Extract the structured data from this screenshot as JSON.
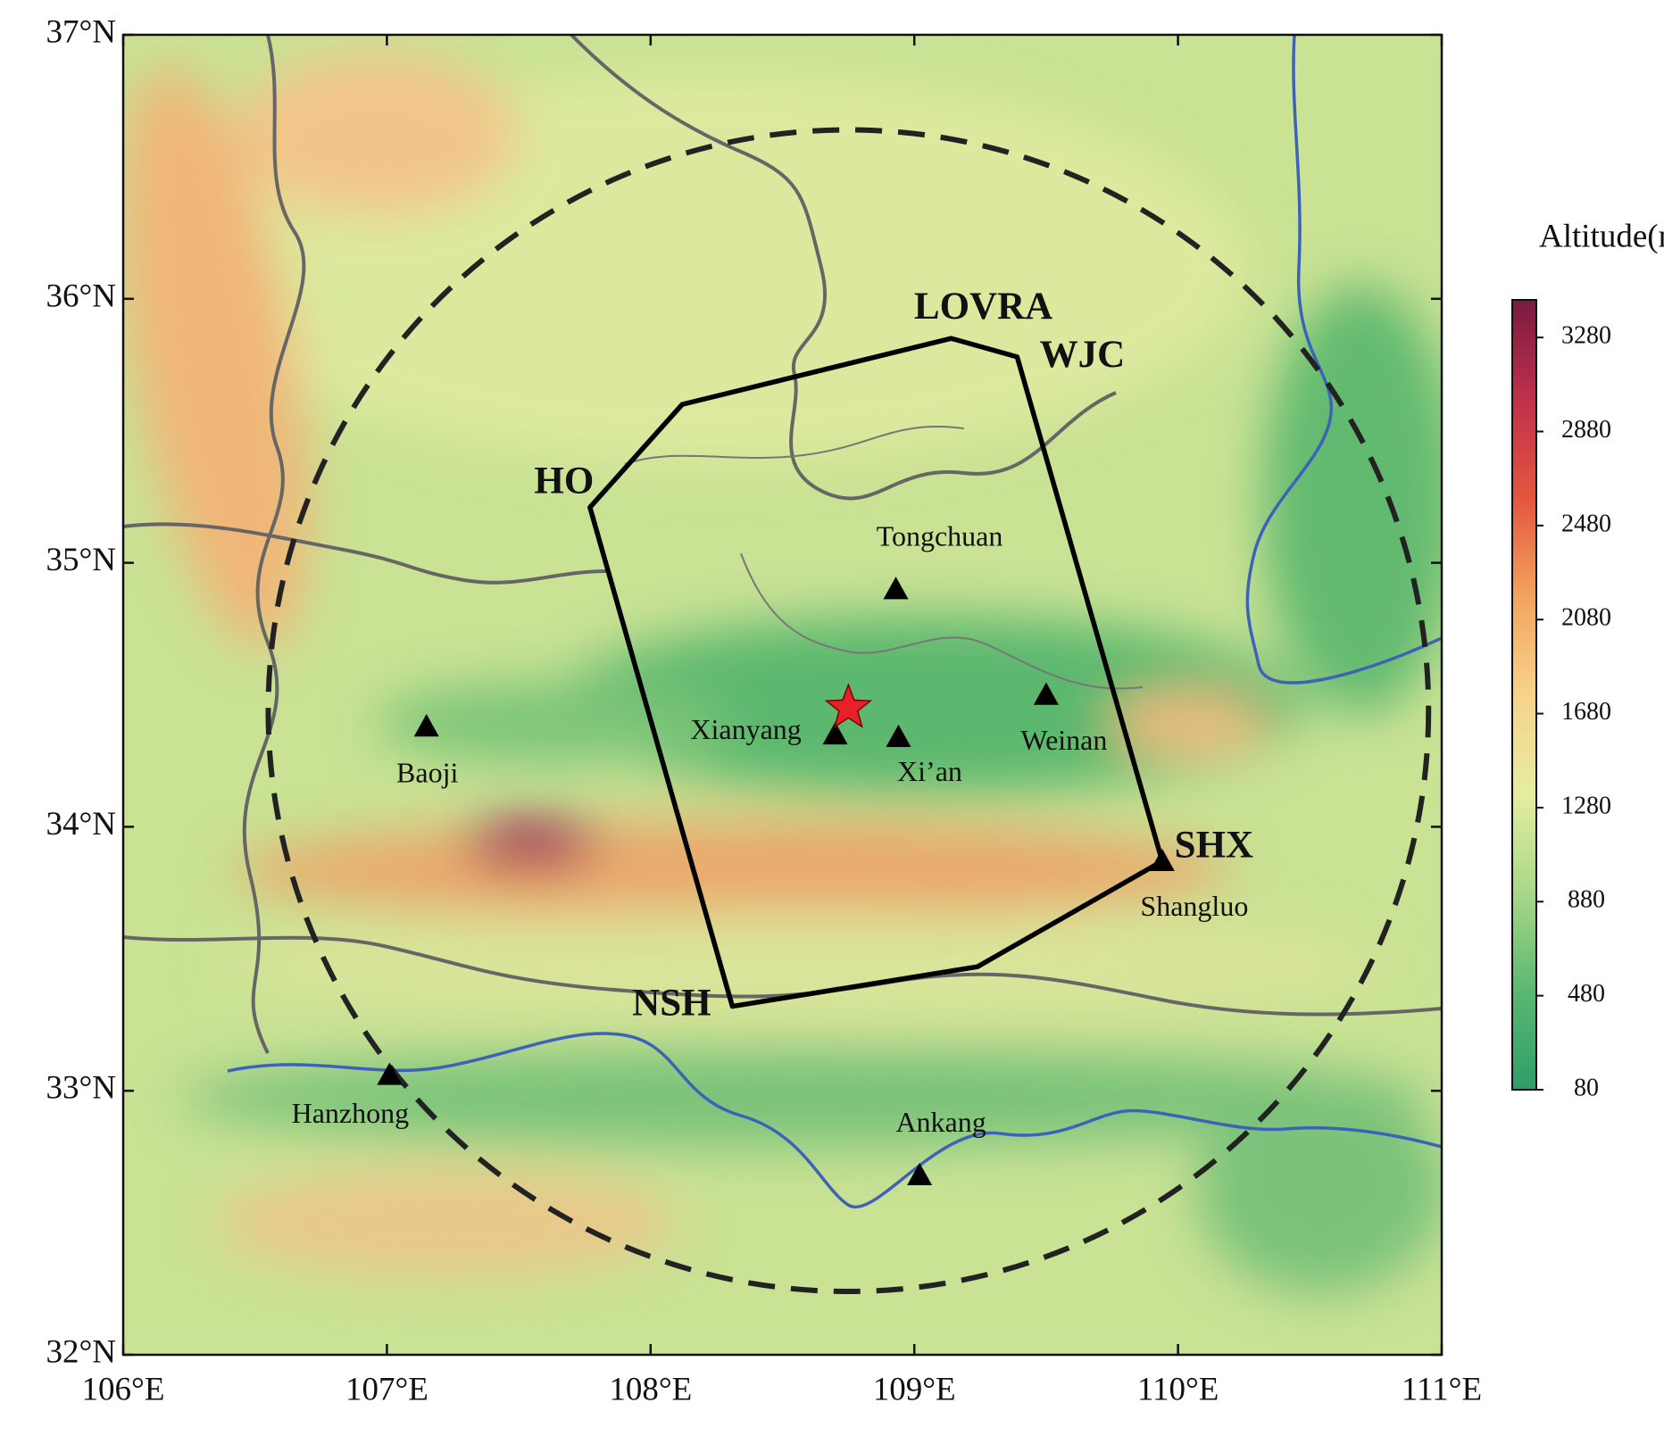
{
  "map": {
    "type": "map",
    "xlim": [
      106,
      111
    ],
    "ylim": [
      32,
      37
    ],
    "xticks": [
      {
        "value": 106,
        "label": "106°E"
      },
      {
        "value": 107,
        "label": "107°E"
      },
      {
        "value": 108,
        "label": "108°E"
      },
      {
        "value": 109,
        "label": "109°E"
      },
      {
        "value": 110,
        "label": "110°E"
      },
      {
        "value": 111,
        "label": "111°E"
      }
    ],
    "yticks": [
      {
        "value": 32,
        "label": "32°N"
      },
      {
        "value": 33,
        "label": "33°N"
      },
      {
        "value": 34,
        "label": "34°N"
      },
      {
        "value": 35,
        "label": "35°N"
      },
      {
        "value": 36,
        "label": "36°N"
      },
      {
        "value": 37,
        "label": "37°N"
      }
    ],
    "circle": {
      "lon": 108.75,
      "lat": 34.44,
      "radius": 2.2
    },
    "star": {
      "lon": 108.75,
      "lat": 34.45,
      "color": "#e8202a"
    },
    "polygon": [
      {
        "name": "HO",
        "lon": 107.77,
        "lat": 35.21
      },
      {
        "lon": 108.12,
        "lat": 35.6
      },
      {
        "name": "LOVRA",
        "lon": 109.14,
        "lat": 35.85
      },
      {
        "name": "WJC",
        "lon": 109.39,
        "lat": 35.78
      },
      {
        "name": "SHX",
        "lon": 109.94,
        "lat": 33.87
      },
      {
        "lon": 109.24,
        "lat": 33.47
      },
      {
        "name": "NSH",
        "lon": 108.31,
        "lat": 33.32
      }
    ],
    "cities": [
      {
        "name": "Tongchuan",
        "lon": 108.93,
        "lat": 34.9
      },
      {
        "name": "Xianyang",
        "lon": 108.7,
        "lat": 34.35
      },
      {
        "name": "Xi’an",
        "lon": 108.94,
        "lat": 34.34
      },
      {
        "name": "Weinan",
        "lon": 109.5,
        "lat": 34.5
      },
      {
        "name": "Baoji",
        "lon": 107.15,
        "lat": 34.38
      },
      {
        "name": "Shangluo",
        "lon": 109.94,
        "lat": 33.87
      },
      {
        "name": "Hanzhong",
        "lon": 107.01,
        "lat": 33.06
      },
      {
        "name": "Ankang",
        "lon": 109.02,
        "lat": 32.68
      }
    ],
    "colorbar": {
      "title": "Altitude(m)",
      "lim": [
        80,
        3440
      ],
      "ticks": [
        80,
        480,
        880,
        1280,
        1680,
        2080,
        2480,
        2880,
        3280
      ],
      "colors": [
        "#2e9e6a",
        "#5ab870",
        "#a8d888",
        "#e6eda0",
        "#f7d38a",
        "#f3a35e",
        "#e4553f",
        "#c0304a",
        "#7a1a40"
      ]
    }
  }
}
